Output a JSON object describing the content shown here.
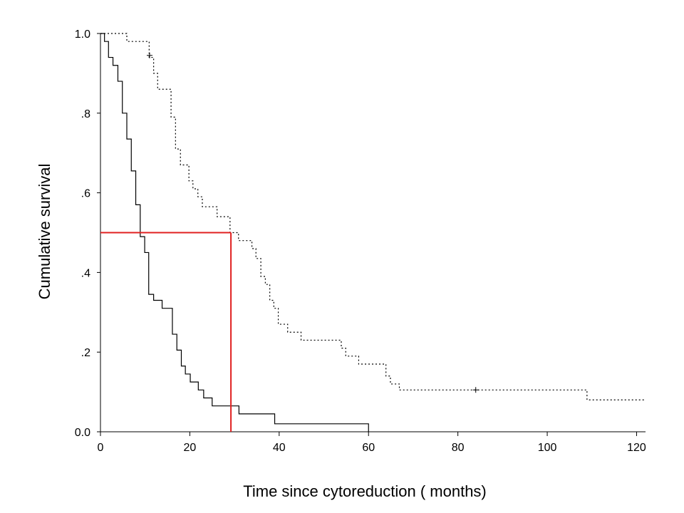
{
  "chart_data": {
    "type": "line",
    "subtype": "kaplan-meier-step",
    "title": "",
    "xlabel": "Time since cytoreduction ( months)",
    "ylabel": "Cumulative survival",
    "xlim": [
      0,
      122
    ],
    "ylim": [
      0,
      1.0
    ],
    "x_ticks": [
      0,
      20,
      40,
      60,
      80,
      100,
      120
    ],
    "x_tick_labels": [
      "0",
      "20",
      "40",
      "60",
      "80",
      "100",
      "120"
    ],
    "y_ticks": [
      0,
      0.2,
      0.4,
      0.6,
      0.8,
      1.0
    ],
    "y_tick_labels": [
      "0.0",
      ".2",
      ".4",
      ".6",
      ".8",
      "1.0"
    ],
    "grid": false,
    "legend": "none",
    "series": [
      {
        "style": "solid",
        "color": "#000000",
        "x": [
          0,
          0.9,
          1.8,
          2.8,
          3.9,
          4.9,
          5.9,
          6.9,
          7.9,
          8.9,
          9.9,
          10.8,
          11.9,
          13.8,
          16.1,
          17.1,
          18.1,
          19.0,
          20.1,
          21.9,
          23.1,
          25.0,
          27.0,
          31.0,
          39.0,
          60.0
        ],
        "y": [
          1.0,
          0.98,
          0.94,
          0.92,
          0.88,
          0.8,
          0.735,
          0.655,
          0.57,
          0.49,
          0.45,
          0.345,
          0.33,
          0.31,
          0.245,
          0.205,
          0.165,
          0.145,
          0.125,
          0.105,
          0.085,
          0.065,
          0.065,
          0.045,
          0.02,
          0.0
        ],
        "censored": []
      },
      {
        "style": "dotted",
        "color": "#000000",
        "x": [
          0,
          5.9,
          10.9,
          11.9,
          12.8,
          15.8,
          16.8,
          17.9,
          19.8,
          20.7,
          21.8,
          22.8,
          23.8,
          26.1,
          29.0,
          30.9,
          33.9,
          34.8,
          35.9,
          36.9,
          37.9,
          38.8,
          39.8,
          41.9,
          44.9,
          53.9,
          54.9,
          57.8,
          59.8,
          63.9,
          64.9,
          66.9,
          108.9,
          122
        ],
        "y": [
          1.0,
          0.98,
          0.94,
          0.9,
          0.86,
          0.79,
          0.71,
          0.67,
          0.63,
          0.61,
          0.59,
          0.565,
          0.565,
          0.54,
          0.5,
          0.48,
          0.46,
          0.435,
          0.39,
          0.37,
          0.33,
          0.31,
          0.27,
          0.25,
          0.23,
          0.21,
          0.19,
          0.17,
          0.17,
          0.14,
          0.12,
          0.105,
          0.08,
          0.08
        ],
        "censored": [
          [
            11.0,
            0.945
          ],
          [
            84.0,
            0.105
          ]
        ]
      }
    ],
    "reference_lines": {
      "color": "#e02020",
      "median_survival": 0.5,
      "median_time": 29.2
    }
  }
}
